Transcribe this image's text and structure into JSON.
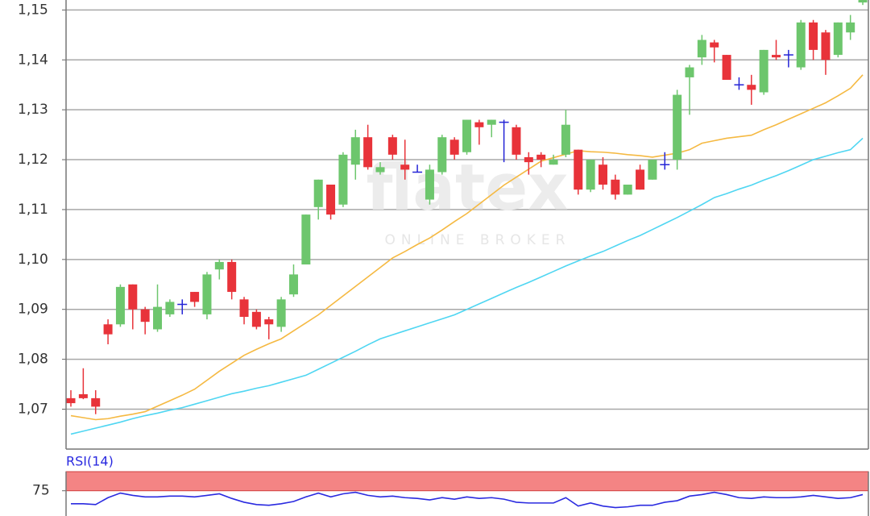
{
  "chart_data": [
    {
      "type": "candlestick",
      "watermark": [
        "flatex",
        "ONLINE BROKER"
      ],
      "open": [
        1.0722,
        1.073,
        1.0722,
        1.087,
        1.087,
        1.095,
        1.09,
        1.086,
        1.089,
        1.091,
        1.0935,
        1.089,
        1.098,
        1.0995,
        1.092,
        1.0895,
        1.088,
        1.0865,
        1.093,
        1.099,
        1.1105,
        1.115,
        1.111,
        1.119,
        1.1245,
        1.1175,
        1.1245,
        1.119,
        1.1175,
        1.112,
        1.1175,
        1.124,
        1.1215,
        1.1275,
        1.127,
        1.1275,
        1.1265,
        1.1205,
        1.121,
        1.119,
        1.121,
        1.122,
        1.114,
        1.119,
        1.116,
        1.113,
        1.118,
        1.116,
        1.119,
        1.12,
        1.1365,
        1.1405,
        1.1435,
        1.141,
        1.135,
        1.135,
        1.1335,
        1.141,
        1.141,
        1.1385,
        1.1475,
        1.1455,
        1.141,
        1.1455,
        1.1515
      ],
      "high": [
        1.0738,
        1.0782,
        1.0738,
        1.088,
        1.095,
        1.095,
        1.0905,
        1.095,
        1.092,
        1.092,
        1.0935,
        1.0975,
        1.1,
        1.1,
        1.0925,
        1.09,
        1.0885,
        1.0925,
        1.099,
        1.109,
        1.116,
        1.115,
        1.1215,
        1.126,
        1.127,
        1.1195,
        1.125,
        1.124,
        1.119,
        1.119,
        1.125,
        1.1245,
        1.128,
        1.128,
        1.128,
        1.128,
        1.127,
        1.1215,
        1.1215,
        1.121,
        1.13,
        1.122,
        1.12,
        1.1205,
        1.117,
        1.115,
        1.119,
        1.12,
        1.1215,
        1.134,
        1.139,
        1.145,
        1.144,
        1.141,
        1.1365,
        1.137,
        1.142,
        1.144,
        1.142,
        1.148,
        1.148,
        1.146,
        1.1475,
        1.149,
        1.153
      ],
      "low": [
        1.0705,
        1.072,
        1.069,
        1.083,
        1.0865,
        1.086,
        1.085,
        1.0855,
        1.0885,
        1.089,
        1.0905,
        1.088,
        1.096,
        1.092,
        1.087,
        1.086,
        1.084,
        1.0855,
        1.0925,
        1.099,
        1.108,
        1.108,
        1.1105,
        1.116,
        1.118,
        1.117,
        1.12,
        1.116,
        1.1175,
        1.111,
        1.117,
        1.12,
        1.121,
        1.123,
        1.1245,
        1.1195,
        1.12,
        1.117,
        1.1185,
        1.119,
        1.1205,
        1.113,
        1.1135,
        1.114,
        1.112,
        1.113,
        1.114,
        1.116,
        1.118,
        1.118,
        1.129,
        1.139,
        1.1395,
        1.136,
        1.134,
        1.131,
        1.133,
        1.14,
        1.1385,
        1.138,
        1.14,
        1.137,
        1.1405,
        1.144,
        1.151
      ],
      "close": [
        1.0712,
        1.0722,
        1.0705,
        1.085,
        1.0945,
        1.09,
        1.0875,
        1.0905,
        1.0915,
        1.091,
        1.0915,
        1.097,
        1.0995,
        1.0935,
        1.0885,
        1.0865,
        1.087,
        1.092,
        1.097,
        1.109,
        1.116,
        1.109,
        1.121,
        1.1245,
        1.1185,
        1.1185,
        1.121,
        1.118,
        1.1175,
        1.118,
        1.1245,
        1.121,
        1.128,
        1.1265,
        1.128,
        1.1275,
        1.121,
        1.1195,
        1.12,
        1.12,
        1.127,
        1.114,
        1.12,
        1.115,
        1.113,
        1.115,
        1.114,
        1.12,
        1.119,
        1.133,
        1.1385,
        1.144,
        1.1425,
        1.136,
        1.135,
        1.134,
        1.142,
        1.1405,
        1.141,
        1.1475,
        1.142,
        1.14,
        1.1475,
        1.1475,
        1.1525
      ],
      "up_color": "#6dc66d",
      "down_color": "#e8333a",
      "doji_color": "#2424d6",
      "series": [
        {
          "color": "#f5b942",
          "values": [
            1.0687,
            1.0683,
            1.0679,
            1.0681,
            1.0686,
            1.069,
            1.0695,
            1.0706,
            1.0717,
            1.0728,
            1.074,
            1.0758,
            1.0776,
            1.0792,
            1.0808,
            1.082,
            1.0831,
            1.0841,
            1.0857,
            1.0873,
            1.0889,
            1.0908,
            1.0927,
            1.0946,
            1.0965,
            1.0984,
            1.1003,
            1.1016,
            1.103,
            1.1043,
            1.1059,
            1.1076,
            1.1092,
            1.1111,
            1.113,
            1.1149,
            1.1165,
            1.1181,
            1.1197,
            1.1204,
            1.1211,
            1.1218,
            1.1216,
            1.1215,
            1.1213,
            1.121,
            1.1208,
            1.1205,
            1.1209,
            1.1213,
            1.122,
            1.1233,
            1.1238,
            1.1243,
            1.1246,
            1.1249,
            1.126,
            1.127,
            1.1281,
            1.1292,
            1.1303,
            1.1314,
            1.1328,
            1.1343,
            1.137
          ]
        },
        {
          "color": "#4fd6f2",
          "values": [
            1.065,
            1.0656,
            1.0662,
            1.0668,
            1.0674,
            1.0681,
            1.0687,
            1.0692,
            1.0698,
            1.0703,
            1.071,
            1.0717,
            1.0724,
            1.0731,
            1.0736,
            1.0742,
            1.0747,
            1.0754,
            1.0761,
            1.0768,
            1.078,
            1.0792,
            1.0804,
            1.0816,
            1.0829,
            1.0841,
            1.0849,
            1.0857,
            1.0865,
            1.0873,
            1.0881,
            1.0889,
            1.09,
            1.0911,
            1.0922,
            1.0933,
            1.0944,
            1.0954,
            1.0965,
            1.0976,
            1.0987,
            1.0997,
            1.1007,
            1.1016,
            1.1027,
            1.1038,
            1.1048,
            1.106,
            1.1072,
            1.1084,
            1.1097,
            1.111,
            1.1124,
            1.1132,
            1.1141,
            1.1149,
            1.1159,
            1.1168,
            1.1178,
            1.1189,
            1.12,
            1.1207,
            1.1214,
            1.122,
            1.1243
          ]
        }
      ],
      "ylim": [
        1.062,
        1.152
      ],
      "yticks": [
        {
          "value": 1.07,
          "label": "1,07"
        },
        {
          "value": 1.08,
          "label": "1,08"
        },
        {
          "value": 1.09,
          "label": "1,09"
        },
        {
          "value": 1.1,
          "label": "1,10"
        },
        {
          "value": 1.11,
          "label": "1,11"
        },
        {
          "value": 1.12,
          "label": "1,12"
        },
        {
          "value": 1.13,
          "label": "1,13"
        },
        {
          "value": 1.14,
          "label": "1,14"
        },
        {
          "value": 1.15,
          "label": "1,15"
        }
      ],
      "grid": true
    },
    {
      "type": "line",
      "title": "RSI(14)",
      "series": [
        {
          "color": "#2a2ae0",
          "values": [
            58,
            58,
            57,
            66,
            72,
            69,
            67,
            67,
            68,
            68,
            67,
            69,
            71,
            65,
            60,
            57,
            56,
            58,
            61,
            67,
            72,
            67,
            71,
            73,
            69,
            67,
            68,
            66,
            65,
            63,
            66,
            64,
            67,
            65,
            66,
            64,
            60,
            59,
            59,
            59,
            66,
            55,
            59,
            55,
            53,
            54,
            56,
            56,
            60,
            62,
            68,
            70,
            73,
            70,
            66,
            65,
            67,
            66,
            66,
            67,
            69,
            67,
            65,
            66,
            70
          ]
        }
      ],
      "ylim": [
        42,
        100
      ],
      "yticks": [
        75
      ],
      "band": [
        75,
        100
      ],
      "band_color": "#f48484"
    }
  ]
}
